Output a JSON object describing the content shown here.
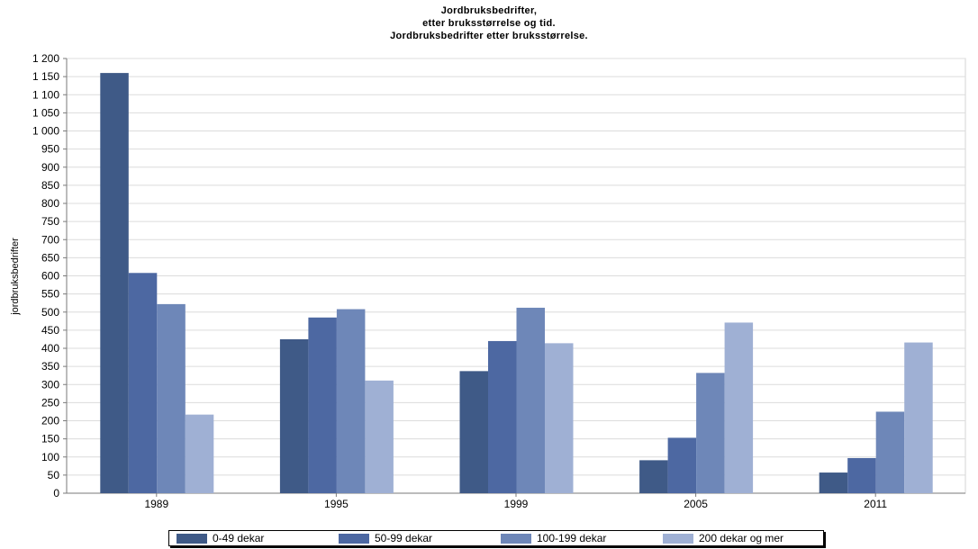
{
  "chart_data": {
    "type": "bar",
    "title": [
      "Jordbruksbedrifter,",
      "etter bruksstørrelse og tid.",
      "Jordbruksbedrifter etter bruksstørrelse."
    ],
    "ylabel": "jordbruksbedrifter",
    "xlabel": "",
    "categories": [
      "1989",
      "1995",
      "1999",
      "2005",
      "2011"
    ],
    "series": [
      {
        "name": "0-49 dekar",
        "color": "#3f5a87",
        "values": [
          1160,
          425,
          337,
          91,
          57
        ]
      },
      {
        "name": "50-99 dekar",
        "color": "#4d68a2",
        "values": [
          608,
          485,
          420,
          153,
          97
        ]
      },
      {
        "name": "100-199 dekar",
        "color": "#6e87b8",
        "values": [
          522,
          508,
          512,
          332,
          225
        ]
      },
      {
        "name": "200 dekar og mer",
        "color": "#9fb0d4",
        "values": [
          217,
          311,
          414,
          471,
          416
        ]
      }
    ],
    "ylim": [
      0,
      1200
    ],
    "yticks": [
      0,
      50,
      100,
      150,
      200,
      250,
      300,
      350,
      400,
      450,
      500,
      550,
      600,
      650,
      700,
      750,
      800,
      850,
      900,
      950,
      1000,
      1050,
      1100,
      1150,
      1200
    ],
    "ytick_labels": [
      "0",
      "50",
      "100",
      "150",
      "200",
      "250",
      "300",
      "350",
      "400",
      "450",
      "500",
      "550",
      "600",
      "650",
      "700",
      "750",
      "800",
      "850",
      "900",
      "950",
      "1 000",
      "1 050",
      "1 100",
      "1 150",
      "1 200"
    ],
    "grid": true,
    "legend_position": "bottom"
  }
}
